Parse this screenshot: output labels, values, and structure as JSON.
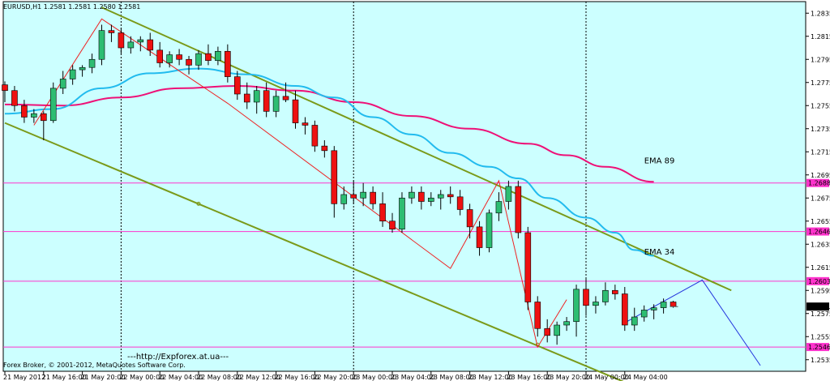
{
  "header": {
    "info": "EURUSD,H1  1.2581 1.2581 1.2580 1.2581"
  },
  "footer": {
    "broker": "Forex Broker, © 2001-2012, MetaQuotes Software Corp.",
    "link": "---http://Expforex.at.ua---"
  },
  "colors": {
    "bg": "#ccffff",
    "bull": "#2dbd72",
    "bear": "#ee1111",
    "ema34": "#22bbee",
    "ema89": "#ee1177",
    "channel": "#7a9a1a",
    "zigzag": "#ee2222",
    "level": "#ff33cc",
    "forecast": "#2233dd",
    "price_tag": "#000000"
  },
  "chart_data": {
    "type": "candlestick",
    "symbol": "EURUSD",
    "timeframe": "H1",
    "ylim": [
      1.2525,
      1.2845
    ],
    "y_ticks": [
      "1.2835",
      "1.2815",
      "1.2795",
      "1.2775",
      "1.2755",
      "1.2735",
      "1.2715",
      "1.2695",
      "1.2675",
      "1.2655",
      "1.2635",
      "1.2615",
      "1.2595",
      "1.2575",
      "1.2555",
      "1.2535"
    ],
    "x_ticks": [
      {
        "i": 0,
        "label": "21 May 2012"
      },
      {
        "i": 4,
        "label": "21 May 16:00"
      },
      {
        "i": 8,
        "label": "21 May 20:00"
      },
      {
        "i": 12,
        "label": "22 May 00:00"
      },
      {
        "i": 16,
        "label": "22 May 04:00"
      },
      {
        "i": 20,
        "label": "22 May 08:00"
      },
      {
        "i": 24,
        "label": "22 May 12:00"
      },
      {
        "i": 28,
        "label": "22 May 16:00"
      },
      {
        "i": 32,
        "label": "22 May 20:00"
      },
      {
        "i": 36,
        "label": "23 May 00:00"
      },
      {
        "i": 40,
        "label": "23 May 04:00"
      },
      {
        "i": 44,
        "label": "23 May 08:00"
      },
      {
        "i": 48,
        "label": "23 May 12:00"
      },
      {
        "i": 52,
        "label": "23 May 16:00"
      },
      {
        "i": 56,
        "label": "23 May 20:00"
      },
      {
        "i": 60,
        "label": "24 May 00:00"
      },
      {
        "i": 64,
        "label": "24 May 04:00"
      }
    ],
    "period_separators": [
      12,
      36,
      60
    ],
    "candles": [
      [
        1.2773,
        1.2776,
        1.2758,
        1.2768
      ],
      [
        1.2768,
        1.2772,
        1.275,
        1.2755
      ],
      [
        1.2755,
        1.276,
        1.274,
        1.2745
      ],
      [
        1.2745,
        1.2752,
        1.274,
        1.2748
      ],
      [
        1.2748,
        1.275,
        1.2725,
        1.2742
      ],
      [
        1.2742,
        1.2775,
        1.274,
        1.277
      ],
      [
        1.277,
        1.2785,
        1.2765,
        1.2778
      ],
      [
        1.2778,
        1.279,
        1.2773,
        1.2786
      ],
      [
        1.2786,
        1.279,
        1.278,
        1.2788
      ],
      [
        1.2788,
        1.28,
        1.2783,
        1.2795
      ],
      [
        1.2795,
        1.2825,
        1.279,
        1.282
      ],
      [
        1.282,
        1.2825,
        1.281,
        1.2818
      ],
      [
        1.2818,
        1.2822,
        1.28,
        1.2805
      ],
      [
        1.2805,
        1.2815,
        1.28,
        1.281
      ],
      [
        1.281,
        1.2815,
        1.2802,
        1.2812
      ],
      [
        1.2812,
        1.2818,
        1.2798,
        1.2803
      ],
      [
        1.2803,
        1.281,
        1.2788,
        1.2792
      ],
      [
        1.2792,
        1.2802,
        1.2788,
        1.2799
      ],
      [
        1.2799,
        1.2804,
        1.279,
        1.2795
      ],
      [
        1.2795,
        1.2798,
        1.2782,
        1.279
      ],
      [
        1.279,
        1.2803,
        1.2786,
        1.28
      ],
      [
        1.28,
        1.2808,
        1.279,
        1.2794
      ],
      [
        1.2794,
        1.2806,
        1.279,
        1.2802
      ],
      [
        1.2802,
        1.2808,
        1.2775,
        1.278
      ],
      [
        1.278,
        1.2785,
        1.276,
        1.2765
      ],
      [
        1.2765,
        1.2775,
        1.2752,
        1.2758
      ],
      [
        1.2758,
        1.2772,
        1.2748,
        1.2768
      ],
      [
        1.2768,
        1.2775,
        1.2745,
        1.275
      ],
      [
        1.275,
        1.2768,
        1.2745,
        1.2763
      ],
      [
        1.2763,
        1.2775,
        1.2758,
        1.276
      ],
      [
        1.276,
        1.2768,
        1.2735,
        1.274
      ],
      [
        1.274,
        1.2745,
        1.273,
        1.2738
      ],
      [
        1.2738,
        1.2742,
        1.2715,
        1.272
      ],
      [
        1.272,
        1.2725,
        1.271,
        1.2716
      ],
      [
        1.2716,
        1.272,
        1.2658,
        1.267
      ],
      [
        1.267,
        1.2685,
        1.2665,
        1.2678
      ],
      [
        1.2678,
        1.269,
        1.267,
        1.2675
      ],
      [
        1.2675,
        1.2688,
        1.2668,
        1.268
      ],
      [
        1.268,
        1.2685,
        1.2665,
        1.267
      ],
      [
        1.267,
        1.268,
        1.265,
        1.2655
      ],
      [
        1.2655,
        1.2662,
        1.2645,
        1.2648
      ],
      [
        1.2648,
        1.268,
        1.2645,
        1.2675
      ],
      [
        1.2675,
        1.2685,
        1.267,
        1.268
      ],
      [
        1.268,
        1.2685,
        1.2665,
        1.2672
      ],
      [
        1.2672,
        1.268,
        1.2668,
        1.2675
      ],
      [
        1.2675,
        1.2682,
        1.2665,
        1.2678
      ],
      [
        1.2678,
        1.2685,
        1.267,
        1.2676
      ],
      [
        1.2676,
        1.2682,
        1.266,
        1.2665
      ],
      [
        1.2665,
        1.267,
        1.264,
        1.265
      ],
      [
        1.265,
        1.2655,
        1.2625,
        1.2632
      ],
      [
        1.2632,
        1.2665,
        1.2628,
        1.2662
      ],
      [
        1.2662,
        1.268,
        1.2655,
        1.2672
      ],
      [
        1.2672,
        1.269,
        1.2665,
        1.2685
      ],
      [
        1.2685,
        1.269,
        1.264,
        1.2645
      ],
      [
        1.2645,
        1.265,
        1.2578,
        1.2585
      ],
      [
        1.2585,
        1.259,
        1.2555,
        1.2562
      ],
      [
        1.2562,
        1.257,
        1.255,
        1.2556
      ],
      [
        1.2556,
        1.2568,
        1.2548,
        1.2565
      ],
      [
        1.2565,
        1.2572,
        1.256,
        1.2568
      ],
      [
        1.2568,
        1.26,
        1.2555,
        1.2596
      ],
      [
        1.2596,
        1.2606,
        1.2573,
        1.2582
      ],
      [
        1.2582,
        1.259,
        1.2575,
        1.2585
      ],
      [
        1.2585,
        1.2602,
        1.2582,
        1.2595
      ],
      [
        1.2595,
        1.26,
        1.2587,
        1.2592
      ],
      [
        1.2592,
        1.2598,
        1.256,
        1.2565
      ],
      [
        1.2565,
        1.258,
        1.256,
        1.2572
      ],
      [
        1.2572,
        1.2582,
        1.2568,
        1.2578
      ],
      [
        1.2578,
        1.2583,
        1.257,
        1.258
      ],
      [
        1.258,
        1.2588,
        1.2575,
        1.2585
      ],
      [
        1.2585,
        1.2586,
        1.258,
        1.2581
      ]
    ],
    "ema34": [
      [
        0,
        1.2748
      ],
      [
        5,
        1.2752
      ],
      [
        10,
        1.277
      ],
      [
        15,
        1.2783
      ],
      [
        20,
        1.2787
      ],
      [
        25,
        1.2782
      ],
      [
        30,
        1.2772
      ],
      [
        34,
        1.2762
      ],
      [
        38,
        1.2745
      ],
      [
        42,
        1.273
      ],
      [
        46,
        1.2714
      ],
      [
        50,
        1.2702
      ],
      [
        53,
        1.2692
      ],
      [
        56,
        1.2675
      ],
      [
        60,
        1.2658
      ],
      [
        63,
        1.2645
      ],
      [
        65,
        1.263
      ],
      [
        67,
        1.2625
      ]
    ],
    "ema89": [
      [
        0,
        1.2756
      ],
      [
        6,
        1.2755
      ],
      [
        12,
        1.2762
      ],
      [
        18,
        1.277
      ],
      [
        24,
        1.2772
      ],
      [
        30,
        1.2768
      ],
      [
        36,
        1.2758
      ],
      [
        42,
        1.2746
      ],
      [
        48,
        1.2735
      ],
      [
        54,
        1.2722
      ],
      [
        58,
        1.2712
      ],
      [
        62,
        1.2702
      ],
      [
        67,
        1.2689
      ]
    ],
    "zigzag": [
      [
        3,
        1.2738
      ],
      [
        10,
        1.283
      ],
      [
        23,
        1.2757
      ],
      [
        46,
        1.2614
      ],
      [
        51,
        1.269
      ],
      [
        55,
        1.2546
      ],
      [
        58,
        1.2587
      ]
    ],
    "channel_upper": [
      [
        10,
        1.284
      ],
      [
        75,
        1.2595
      ]
    ],
    "channel_lower": [
      [
        0,
        1.274
      ],
      [
        67,
        1.2505
      ]
    ],
    "channel_markers": [
      [
        20,
        1.267
      ],
      [
        55,
        1.2548
      ]
    ],
    "forecast": [
      [
        64,
        1.2567
      ],
      [
        72,
        1.2604
      ],
      [
        78,
        1.253
      ]
    ],
    "levels": [
      {
        "value": 1.2688,
        "label": "1.2688"
      },
      {
        "value": 1.2646,
        "label": "1.2646"
      },
      {
        "value": 1.2603,
        "label": "1.2603"
      },
      {
        "value": 1.2546,
        "label": "1.2546"
      }
    ],
    "current_price": {
      "value": 1.2581,
      "label": "1.2581"
    },
    "annotations": [
      {
        "text": "EMA 89",
        "x": 66,
        "y": 1.2705
      },
      {
        "text": "EMA 34",
        "x": 66,
        "y": 1.2626
      }
    ]
  }
}
